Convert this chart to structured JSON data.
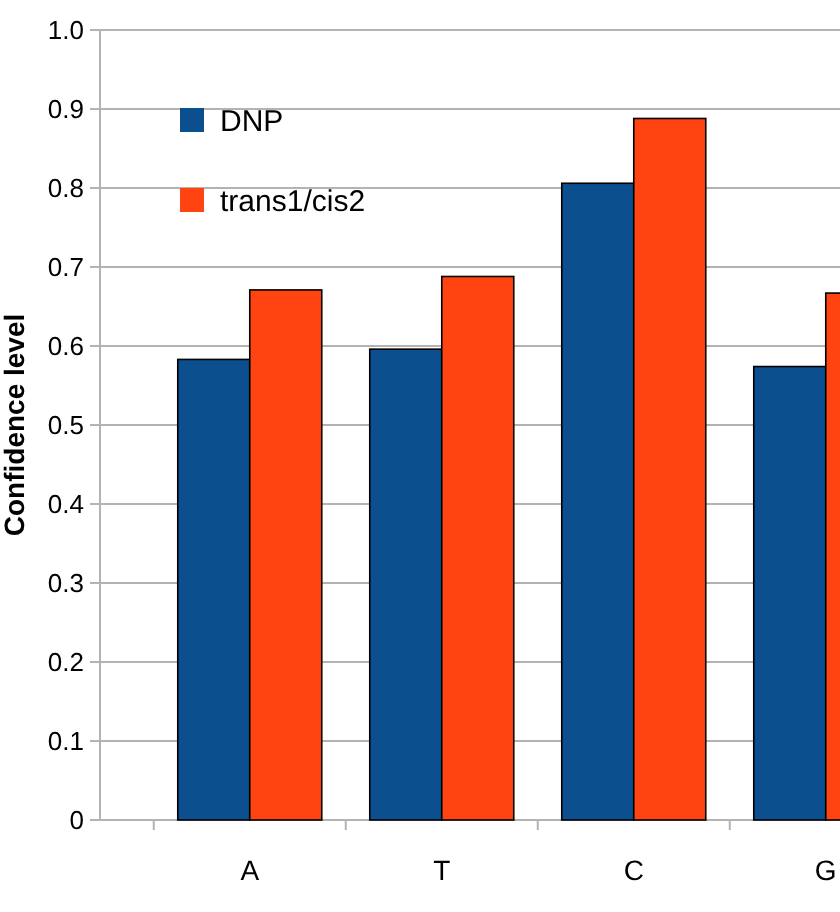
{
  "chart_data": {
    "type": "bar",
    "ylabel": "Confidence level",
    "categories": [
      "A",
      "T",
      "C",
      "G"
    ],
    "series": [
      {
        "name": "DNP",
        "color": "#0b4f8f",
        "values": [
          0.583,
          0.596,
          0.806,
          0.574
        ]
      },
      {
        "name": "trans1/cis2",
        "color": "#ff4412",
        "values": [
          0.671,
          0.688,
          0.888,
          0.667
        ]
      }
    ],
    "ylim": [
      0,
      1
    ],
    "yticks": [
      {
        "value": 0,
        "label": "0"
      },
      0.1,
      0.2,
      0.3,
      0.4,
      0.5,
      0.6,
      0.7,
      0.8,
      0.9,
      {
        "value": 1,
        "label": "1.0"
      }
    ],
    "grid": "y",
    "legend": "top left"
  }
}
